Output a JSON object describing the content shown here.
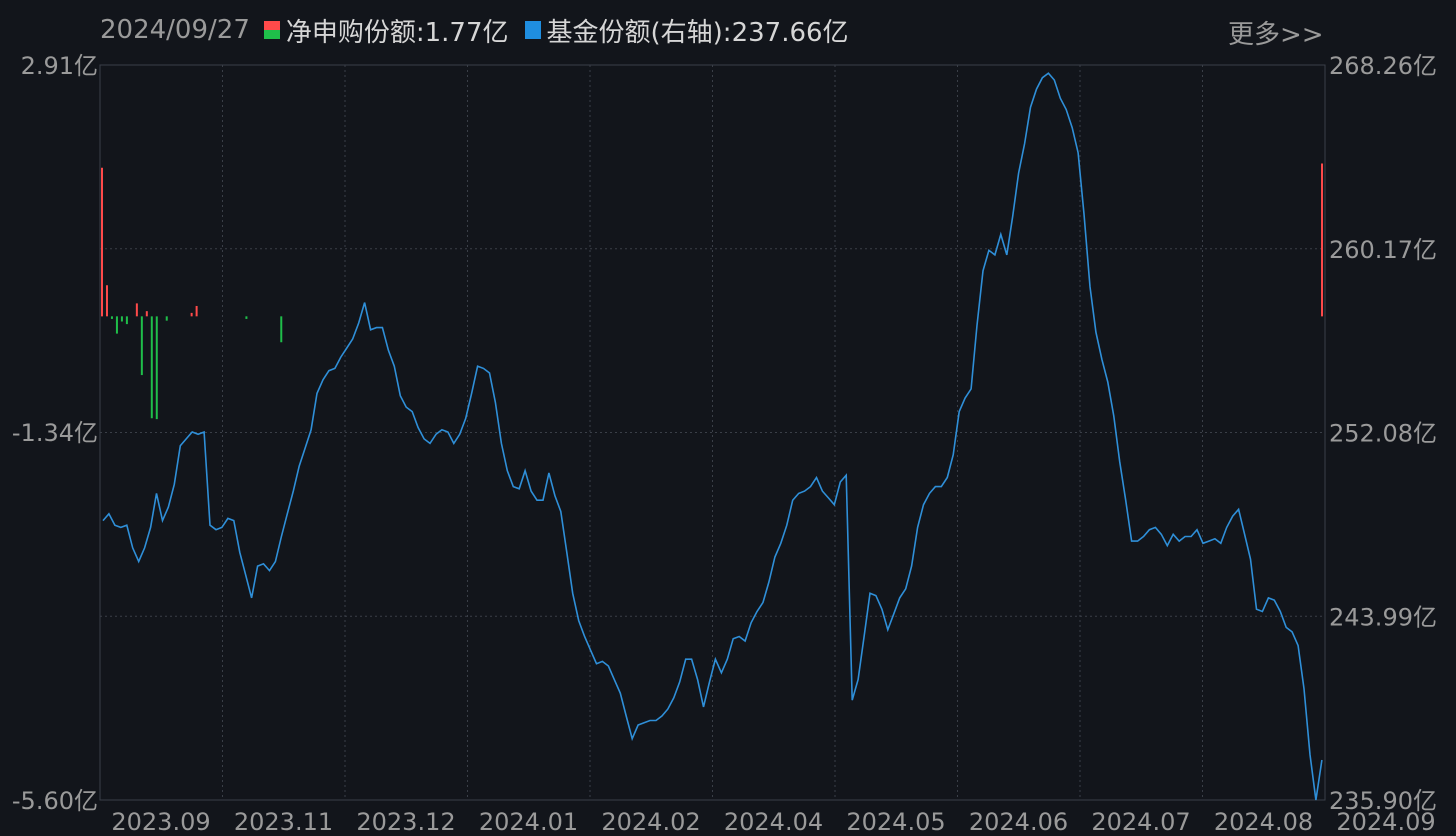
{
  "header": {
    "date": "2024/09/27",
    "series1_label": "净申购份额:1.77亿",
    "series2_label": "基金份额(右轴):237.66亿",
    "more_label": "更多>>"
  },
  "colors": {
    "background": "#12151b",
    "positive": "#ff4a4a",
    "negative": "#1fbf4a",
    "line": "#2f8fd8",
    "grid": "#3a3f48",
    "axis_text": "#9a9a9a"
  },
  "chart_data": {
    "type": "bar+line",
    "grid": true,
    "left_axis": {
      "unit": "亿",
      "range": [
        -5.6,
        2.91
      ],
      "ticks": [
        "2.91亿",
        "-1.34亿",
        "-5.60亿"
      ]
    },
    "right_axis": {
      "unit": "亿",
      "range": [
        235.9,
        268.26
      ],
      "ticks": [
        "268.26亿",
        "260.17亿",
        "252.08亿",
        "243.99亿",
        "235.90亿"
      ]
    },
    "x_ticks": [
      "2023.09",
      "2023.11",
      "2023.12",
      "2024.01",
      "2024.02",
      "2024.04",
      "2024.05",
      "2024.06",
      "2024.07",
      "2024.08",
      "2024.09"
    ],
    "series": [
      {
        "name": "净申购份额",
        "kind": "bar",
        "axis": "left",
        "values": [
          1.72,
          0.36,
          -0.03,
          -0.2,
          -0.06,
          -0.09,
          0.0,
          0.15,
          -0.68,
          0.06,
          -1.18,
          -1.19,
          0.0,
          -0.05,
          0.0,
          0.0,
          0.0,
          0.0,
          0.04,
          0.12,
          0.0,
          0.0,
          0.0,
          0.0,
          0.0,
          0.0,
          0.0,
          0.0,
          0.0,
          -0.03,
          0.0,
          0.0,
          0.0,
          0.0,
          0.0,
          0.0,
          -0.3,
          0.0,
          0.0,
          0.0,
          0.0,
          0.0,
          0.0,
          0.0,
          0.0,
          0.0,
          0.0,
          0.0,
          0.0,
          0.0,
          0.0,
          0.0,
          0.0,
          0.0,
          0.0,
          0.0,
          0.0,
          0.0,
          0.0,
          0.0,
          0.0,
          0.0,
          0.0,
          0.0,
          0.0,
          0.0,
          0.0,
          0.0,
          0.0,
          0.0,
          0.0,
          0.0,
          0.0,
          0.0,
          0.0,
          0.0,
          0.0,
          0.0,
          0.0,
          0.0,
          0.0,
          0.0,
          0.0,
          0.0,
          0.0,
          0.0,
          0.0,
          0.0,
          0.0,
          0.0,
          0.0,
          0.0,
          0.0,
          0.0,
          0.0,
          0.0,
          0.0,
          0.0,
          0.0,
          0.0,
          0.0,
          0.0,
          0.0,
          0.0,
          0.0,
          0.0,
          0.0,
          0.0,
          0.0,
          0.0,
          0.0,
          0.0,
          0.0,
          0.0,
          0.0,
          0.0,
          0.0,
          0.0,
          0.0,
          0.0,
          0.0,
          0.0,
          0.0,
          0.0,
          0.0,
          0.0,
          0.0,
          0.0,
          0.0,
          0.0,
          0.0,
          0.0,
          0.0,
          0.0,
          0.0,
          0.0,
          0.0,
          0.0,
          0.0,
          0.0,
          0.0,
          0.0,
          0.0,
          0.0,
          0.0,
          0.0,
          0.0,
          0.0,
          0.0,
          0.0,
          0.0,
          0.0,
          0.0,
          0.0,
          0.0,
          0.0,
          0.0,
          0.0,
          0.0,
          0.0,
          0.0,
          0.0,
          0.0,
          0.0,
          0.0,
          0.0,
          0.0,
          0.0,
          0.0,
          0.0,
          0.0,
          0.0,
          0.0,
          0.0,
          0.0,
          0.0,
          0.0,
          0.0,
          0.0,
          0.0,
          0.0,
          0.0,
          0.0,
          0.0,
          0.0,
          0.0,
          0.0,
          0.0,
          0.0,
          0.0,
          0.0,
          0.0,
          0.0,
          0.0,
          0.0,
          0.0,
          0.0,
          0.0,
          0.0,
          0.0,
          0.0,
          0.0,
          0.0,
          0.0,
          0.0,
          0.0,
          0.0,
          0.0,
          0.0,
          0.0,
          0.0,
          0.0,
          0.0,
          0.0,
          0.0,
          0.0,
          0.0,
          0.0,
          0.0,
          0.0,
          0.0,
          0.0,
          0.0,
          0.0,
          0.0,
          0.0,
          0.0,
          0.0,
          0.0,
          0.0,
          0.0,
          0.0,
          0.0,
          0.0,
          0.0,
          0.0,
          0.0,
          0.0,
          0.0,
          0.0,
          0.0,
          0.0,
          0.0,
          0.0,
          0.0,
          1.77
        ]
      },
      {
        "name": "基金份额",
        "kind": "line",
        "axis": "right",
        "values": [
          248.2,
          248.5,
          248.0,
          247.9,
          248.0,
          247.0,
          246.4,
          247.0,
          247.9,
          249.4,
          248.2,
          248.8,
          249.8,
          251.5,
          251.8,
          252.1,
          252.0,
          252.1,
          248.0,
          247.8,
          247.9,
          248.3,
          248.2,
          246.8,
          245.8,
          244.8,
          246.2,
          246.3,
          246.0,
          246.4,
          247.5,
          248.5,
          249.5,
          250.6,
          251.4,
          252.2,
          253.8,
          254.4,
          254.8,
          254.9,
          255.4,
          255.8,
          256.2,
          256.9,
          257.8,
          256.6,
          256.7,
          256.7,
          255.7,
          255.0,
          253.7,
          253.2,
          253.0,
          252.3,
          251.8,
          251.6,
          252.0,
          252.2,
          252.1,
          251.6,
          252.0,
          252.7,
          253.8,
          255.0,
          254.9,
          254.7,
          253.4,
          251.6,
          250.4,
          249.7,
          249.6,
          250.4,
          249.5,
          249.1,
          249.1,
          250.3,
          249.3,
          248.6,
          246.8,
          245.0,
          243.8,
          243.1,
          242.5,
          241.9,
          242.0,
          241.8,
          241.2,
          240.6,
          239.6,
          238.6,
          239.2,
          239.3,
          239.4,
          239.4,
          239.6,
          239.9,
          240.4,
          241.1,
          242.1,
          242.1,
          241.2,
          240.0,
          241.1,
          242.1,
          241.5,
          242.1,
          243.0,
          243.1,
          242.9,
          243.7,
          244.2,
          244.6,
          245.5,
          246.6,
          247.2,
          248.0,
          249.1,
          249.4,
          249.5,
          249.7,
          250.1,
          249.5,
          249.2,
          248.9,
          249.9,
          250.2,
          240.3,
          241.2,
          243.1,
          245.0,
          244.9,
          244.3,
          243.4,
          244.1,
          244.8,
          245.2,
          246.2,
          247.9,
          248.9,
          249.4,
          249.7,
          249.7,
          250.1,
          251.1,
          253.0,
          253.6,
          254.0,
          256.8,
          259.2,
          260.1,
          259.9,
          260.8,
          259.9,
          261.6,
          263.5,
          264.8,
          266.4,
          267.2,
          267.7,
          267.9,
          267.6,
          266.8,
          266.3,
          265.5,
          264.4,
          261.7,
          258.5,
          256.5,
          255.3,
          254.3,
          252.8,
          250.8,
          249.1,
          247.3,
          247.3,
          247.5,
          247.8,
          247.9,
          247.6,
          247.1,
          247.6,
          247.3,
          247.5,
          247.5,
          247.8,
          247.2,
          247.3,
          247.4,
          247.2,
          247.9,
          248.4,
          248.7,
          247.6,
          246.5,
          244.3,
          244.2,
          244.8,
          244.7,
          244.2,
          243.5,
          243.3,
          242.7,
          240.8,
          237.9,
          235.9,
          237.66
        ]
      }
    ]
  }
}
